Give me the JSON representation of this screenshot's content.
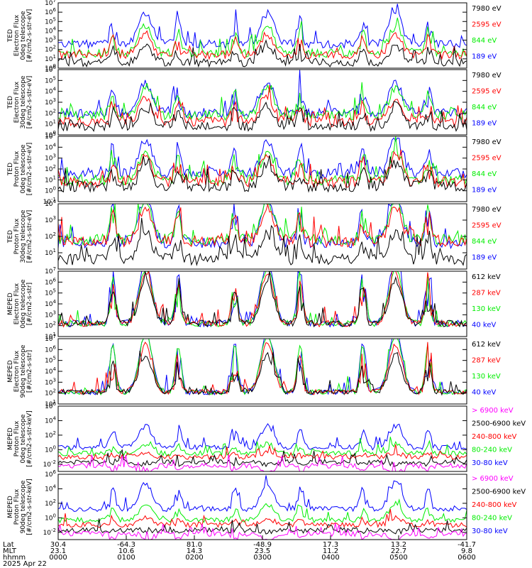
{
  "colors": {
    "black": "#000000",
    "red": "#ff0000",
    "green": "#00ee00",
    "blue": "#0000ff",
    "magenta": "#ff00ff"
  },
  "chart_data": [
    {
      "type": "line",
      "ylabel": [
        "TED",
        "Electron Flux",
        "0deg telescope",
        "[#/cm2-s-str-eV]"
      ],
      "ylog": true,
      "ylim_exp": [
        0,
        7
      ],
      "yticks": [
        "10^0",
        "10^1",
        "10^2",
        "10^3",
        "10^4",
        "10^5",
        "10^6",
        "10^7"
      ],
      "legend": [
        {
          "label": "7980 eV",
          "color": "black"
        },
        {
          "label": "2595 eV",
          "color": "red"
        },
        {
          "label": "844 eV",
          "color": "green"
        },
        {
          "label": "189 eV",
          "color": "blue"
        }
      ],
      "profile": {
        "base": [
          2.6,
          1.6,
          1.4,
          0.6
        ],
        "peak": [
          3.3,
          2.9,
          2.3,
          1.9
        ],
        "noise": 0.45
      }
    },
    {
      "type": "line",
      "ylabel": [
        "TED",
        "Electron Flux",
        "30deg telescope",
        "[#/cm2-s-str-eV]"
      ],
      "ylog": true,
      "ylim_exp": [
        0,
        6
      ],
      "yticks": [
        "10^0",
        "10^1",
        "10^2",
        "10^3",
        "10^4",
        "10^5",
        "10^6"
      ],
      "legend": [
        {
          "label": "7980 eV",
          "color": "black"
        },
        {
          "label": "2595 eV",
          "color": "red"
        },
        {
          "label": "844 eV",
          "color": "green"
        },
        {
          "label": "189 eV",
          "color": "blue"
        }
      ],
      "profile": {
        "base": [
          2.0,
          1.8,
          1.2,
          0.8
        ],
        "peak": [
          2.9,
          2.6,
          2.1,
          1.8
        ],
        "noise": 0.45
      }
    },
    {
      "type": "line",
      "ylabel": [
        "TED",
        "Proton Flux",
        "0deg telescope",
        "[#/cm2-s-str-eV]"
      ],
      "ylog": true,
      "ylim_exp": [
        -1,
        5
      ],
      "yticks": [
        "10^-1",
        "10^0",
        "10^1",
        "10^2",
        "10^3",
        "10^4",
        "10^5"
      ],
      "legend": [
        {
          "label": "7980 eV",
          "color": "black"
        },
        {
          "label": "2595 eV",
          "color": "red"
        },
        {
          "label": "844 eV",
          "color": "green"
        },
        {
          "label": "189 eV",
          "color": "blue"
        }
      ],
      "profile": {
        "base": [
          1.6,
          1.0,
          0.8,
          0.4
        ],
        "peak": [
          3.2,
          2.6,
          2.4,
          2.0
        ],
        "noise": 0.5
      }
    },
    {
      "type": "line",
      "ylabel": [
        "TED",
        "Proton Flux",
        "30deg telescope",
        "[#/cm2-s-str-eV]"
      ],
      "ylog": true,
      "ylim_exp": [
        0,
        4
      ],
      "yticks": [
        "10^1",
        "10^2",
        "10^3",
        "10^4"
      ],
      "legend": [
        {
          "label": "7980 eV",
          "color": "black"
        },
        {
          "label": "2595 eV",
          "color": "red"
        },
        {
          "label": "844 eV",
          "color": "green"
        },
        {
          "label": "189 eV",
          "color": "blue"
        }
      ],
      "profile": {
        "base": [
          1.6,
          1.8,
          1.7,
          0.6
        ],
        "peak": [
          3.0,
          2.4,
          2.1,
          1.6
        ],
        "noise": 0.35
      }
    },
    {
      "type": "line",
      "ylabel": [
        "MEPED",
        "Electron Flux",
        "0deg telescope",
        "[#/cm2-s-str]"
      ],
      "ylog": true,
      "ylim_exp": [
        1,
        7
      ],
      "yticks": [
        "10^1",
        "10^2",
        "10^3",
        "10^4",
        "10^5",
        "10^6",
        "10^7"
      ],
      "legend": [
        {
          "label": "612 keV",
          "color": "black"
        },
        {
          "label": "287 keV",
          "color": "red"
        },
        {
          "label": "130 keV",
          "color": "green"
        },
        {
          "label": "40 keV",
          "color": "blue"
        }
      ],
      "profile": {
        "base": [
          2.2,
          2.2,
          2.2,
          2.2
        ],
        "peak": [
          5.8,
          5.2,
          4.6,
          4.0
        ],
        "noise": 0.3
      }
    },
    {
      "type": "line",
      "ylabel": [
        "MEPED",
        "Electron Flux",
        "90deg telescope",
        "[#/cm2-s-str]"
      ],
      "ylog": true,
      "ylim_exp": [
        1,
        7
      ],
      "yticks": [
        "10^1",
        "10^2",
        "10^3",
        "10^4",
        "10^5",
        "10^6",
        "10^7"
      ],
      "legend": [
        {
          "label": "612 keV",
          "color": "black"
        },
        {
          "label": "287 keV",
          "color": "red"
        },
        {
          "label": "130 keV",
          "color": "green"
        },
        {
          "label": "40 keV",
          "color": "blue"
        }
      ],
      "profile": {
        "base": [
          2.1,
          2.1,
          2.1,
          2.1
        ],
        "peak": [
          5.6,
          5.4,
          4.4,
          3.4
        ],
        "noise": 0.25
      }
    },
    {
      "type": "line",
      "ylabel": [
        "MEPED",
        "Proton Flux",
        "0deg telescope",
        "[#/cm2-s-str-keV]"
      ],
      "ylog": true,
      "ylim_exp": [
        -3,
        6
      ],
      "yticks": [
        "10^-2",
        "10^0",
        "10^2",
        "10^4",
        "10^6"
      ],
      "legend": [
        {
          "label": "> 6900 keV",
          "color": "magenta"
        },
        {
          "label": "2500-6900 keV",
          "color": "black"
        },
        {
          "label": "240-800 keV",
          "color": "red"
        },
        {
          "label": "80-240 keV",
          "color": "green"
        },
        {
          "label": "30-80 keV",
          "color": "blue"
        }
      ],
      "profile": {
        "base": [
          0.3,
          -0.5,
          -1.0,
          -1.7,
          -2.2
        ],
        "peak": [
          3.0,
          1.3,
          0.6,
          -0.4,
          -1.2
        ],
        "noise": 0.35
      }
    },
    {
      "type": "line",
      "ylabel": [
        "MEPED",
        "Proton Flux",
        "90deg telescope",
        "[#/cm2-s-str-keV]"
      ],
      "ylog": true,
      "ylim_exp": [
        -3,
        6
      ],
      "yticks": [
        "10^-2",
        "10^0",
        "10^2",
        "10^4",
        "10^6"
      ],
      "legend": [
        {
          "label": "> 6900 keV",
          "color": "magenta"
        },
        {
          "label": "2500-6900 keV",
          "color": "black"
        },
        {
          "label": "240-800 keV",
          "color": "red"
        },
        {
          "label": "80-240 keV",
          "color": "green"
        },
        {
          "label": "30-80 keV",
          "color": "blue"
        }
      ],
      "profile": {
        "base": [
          1.2,
          -0.3,
          -1.0,
          -1.7,
          -2.2
        ],
        "peak": [
          3.6,
          2.2,
          1.0,
          -0.2,
          -1.0
        ],
        "noise": 0.35
      }
    }
  ],
  "x_axis": {
    "row_labels": [
      "Lat",
      "MLT",
      "hhmm"
    ],
    "ticks": [
      {
        "lat": "30.4",
        "mlt": "23.1",
        "hhmm": "0000"
      },
      {
        "lat": "-64.3",
        "mlt": "10.6",
        "hhmm": "0100"
      },
      {
        "lat": "81.0",
        "mlt": "14.3",
        "hhmm": "0200"
      },
      {
        "lat": "-48.9",
        "mlt": "23.5",
        "hhmm": "0300"
      },
      {
        "lat": "17.3",
        "mlt": "11.2",
        "hhmm": "0400"
      },
      {
        "lat": "13.2",
        "mlt": "22.7",
        "hhmm": "0500"
      },
      {
        "lat": "-41.7",
        "mlt": "9.8",
        "hhmm": "0600"
      }
    ],
    "date": "2025 Apr 22"
  }
}
